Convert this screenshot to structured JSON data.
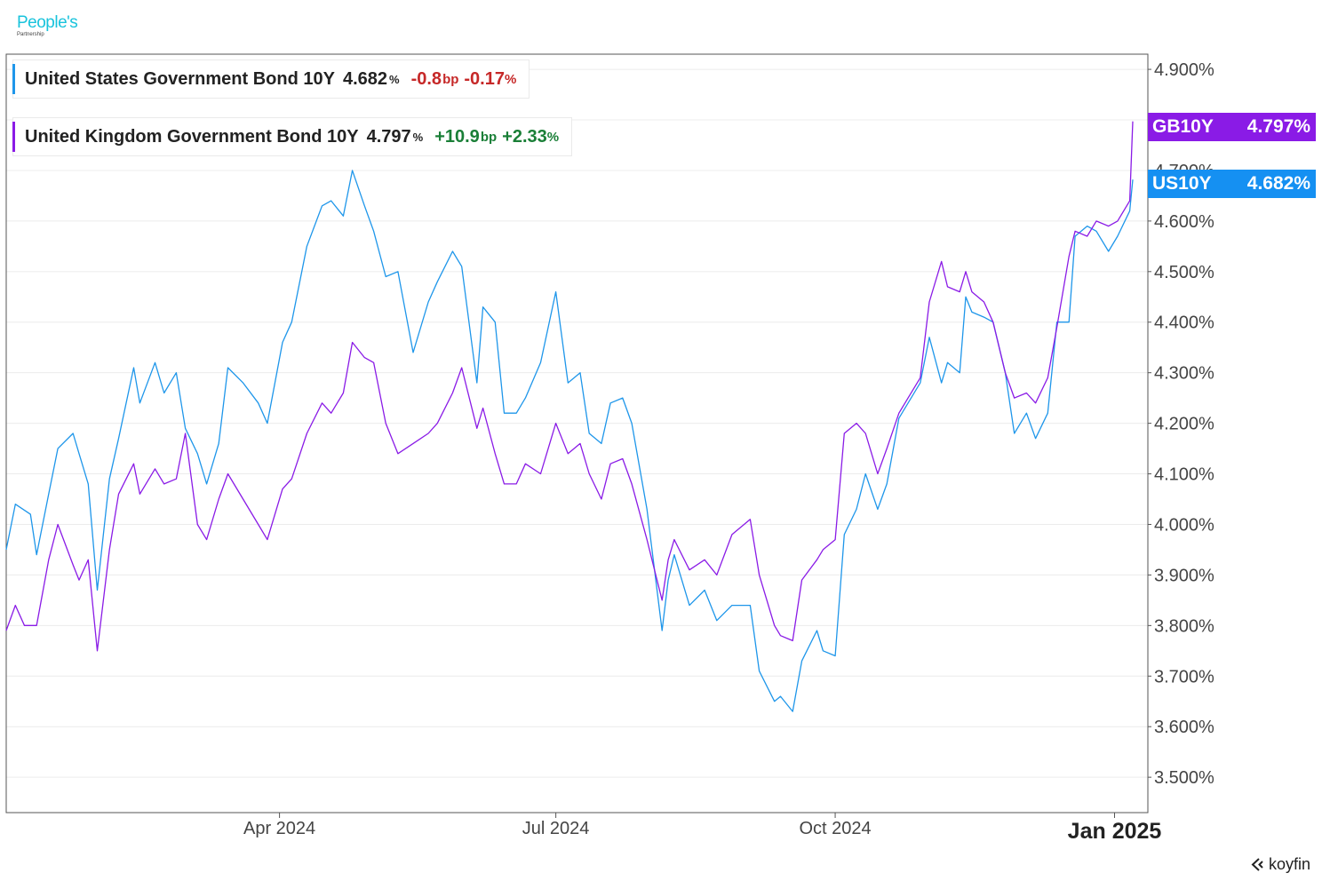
{
  "brand": {
    "name": "People's",
    "sub": "Partnership"
  },
  "legend": [
    {
      "name": "United States Government Bond 10Y",
      "value": "4.682",
      "value_unit": "%",
      "change_bp": "-0.8",
      "bp_unit": "bp",
      "change_pct": "-0.17",
      "pct_unit": "%",
      "direction": "neg",
      "color": "#1e96ea"
    },
    {
      "name": "United Kingdom Government Bond 10Y",
      "value": "4.797",
      "value_unit": "%",
      "change_bp": "+10.9",
      "bp_unit": "bp",
      "change_pct": "+2.33",
      "pct_unit": "%",
      "direction": "pos",
      "color": "#8a1be6"
    }
  ],
  "tags": [
    {
      "ticker": "GB10Y",
      "value": "4.797%",
      "color": "#8a1be6"
    },
    {
      "ticker": "US10Y",
      "value": "4.682%",
      "color": "#1590f2"
    }
  ],
  "footer": {
    "source": "koyfin"
  },
  "chart_data": {
    "type": "line",
    "title": "",
    "xlabel": "",
    "ylabel": "",
    "x_range": [
      "2024-01-02",
      "2025-01-07"
    ],
    "ylim": [
      3.43,
      4.93
    ],
    "y_ticks": [
      3.5,
      3.6,
      3.7,
      3.8,
      3.9,
      4.0,
      4.1,
      4.2,
      4.3,
      4.4,
      4.5,
      4.6,
      4.7,
      4.8,
      4.9
    ],
    "y_tick_labels": [
      "3.500%",
      "3.600%",
      "3.700%",
      "3.800%",
      "3.900%",
      "4.000%",
      "4.100%",
      "4.200%",
      "4.300%",
      "4.400%",
      "4.500%",
      "4.600%",
      "4.700%",
      "4.800%",
      "4.900%"
    ],
    "x_ticks": [
      {
        "date": "2024-04-01",
        "label": "Apr 2024"
      },
      {
        "date": "2024-07-01",
        "label": "Jul 2024"
      },
      {
        "date": "2024-10-01",
        "label": "Oct 2024"
      },
      {
        "date": "2025-01-01",
        "label": "Jan 2025",
        "major": true
      }
    ],
    "grid": true,
    "series": [
      {
        "name": "United States Government Bond 10Y",
        "ticker": "US10Y",
        "color": "#1e96ea",
        "points": [
          [
            "2024-01-02",
            3.95
          ],
          [
            "2024-01-05",
            4.04
          ],
          [
            "2024-01-10",
            4.02
          ],
          [
            "2024-01-12",
            3.94
          ],
          [
            "2024-01-16",
            4.06
          ],
          [
            "2024-01-19",
            4.15
          ],
          [
            "2024-01-24",
            4.18
          ],
          [
            "2024-01-26",
            4.14
          ],
          [
            "2024-01-29",
            4.08
          ],
          [
            "2024-02-01",
            3.87
          ],
          [
            "2024-02-05",
            4.09
          ],
          [
            "2024-02-08",
            4.17
          ],
          [
            "2024-02-13",
            4.31
          ],
          [
            "2024-02-15",
            4.24
          ],
          [
            "2024-02-20",
            4.32
          ],
          [
            "2024-02-23",
            4.26
          ],
          [
            "2024-02-27",
            4.3
          ],
          [
            "2024-03-01",
            4.19
          ],
          [
            "2024-03-05",
            4.14
          ],
          [
            "2024-03-08",
            4.08
          ],
          [
            "2024-03-12",
            4.16
          ],
          [
            "2024-03-15",
            4.31
          ],
          [
            "2024-03-20",
            4.28
          ],
          [
            "2024-03-25",
            4.24
          ],
          [
            "2024-03-28",
            4.2
          ],
          [
            "2024-04-02",
            4.36
          ],
          [
            "2024-04-05",
            4.4
          ],
          [
            "2024-04-10",
            4.55
          ],
          [
            "2024-04-15",
            4.63
          ],
          [
            "2024-04-18",
            4.64
          ],
          [
            "2024-04-22",
            4.61
          ],
          [
            "2024-04-25",
            4.7
          ],
          [
            "2024-04-29",
            4.63
          ],
          [
            "2024-05-02",
            4.58
          ],
          [
            "2024-05-06",
            4.49
          ],
          [
            "2024-05-10",
            4.5
          ],
          [
            "2024-05-15",
            4.34
          ],
          [
            "2024-05-20",
            4.44
          ],
          [
            "2024-05-23",
            4.48
          ],
          [
            "2024-05-28",
            4.54
          ],
          [
            "2024-05-31",
            4.51
          ],
          [
            "2024-06-05",
            4.28
          ],
          [
            "2024-06-07",
            4.43
          ],
          [
            "2024-06-11",
            4.4
          ],
          [
            "2024-06-14",
            4.22
          ],
          [
            "2024-06-18",
            4.22
          ],
          [
            "2024-06-21",
            4.25
          ],
          [
            "2024-06-26",
            4.32
          ],
          [
            "2024-07-01",
            4.46
          ],
          [
            "2024-07-05",
            4.28
          ],
          [
            "2024-07-09",
            4.3
          ],
          [
            "2024-07-12",
            4.18
          ],
          [
            "2024-07-16",
            4.16
          ],
          [
            "2024-07-19",
            4.24
          ],
          [
            "2024-07-23",
            4.25
          ],
          [
            "2024-07-26",
            4.2
          ],
          [
            "2024-07-31",
            4.03
          ],
          [
            "2024-08-05",
            3.79
          ],
          [
            "2024-08-07",
            3.89
          ],
          [
            "2024-08-09",
            3.94
          ],
          [
            "2024-08-14",
            3.84
          ],
          [
            "2024-08-19",
            3.87
          ],
          [
            "2024-08-23",
            3.81
          ],
          [
            "2024-08-28",
            3.84
          ],
          [
            "2024-09-03",
            3.84
          ],
          [
            "2024-09-06",
            3.71
          ],
          [
            "2024-09-11",
            3.65
          ],
          [
            "2024-09-13",
            3.66
          ],
          [
            "2024-09-17",
            3.63
          ],
          [
            "2024-09-20",
            3.73
          ],
          [
            "2024-09-25",
            3.79
          ],
          [
            "2024-09-27",
            3.75
          ],
          [
            "2024-10-01",
            3.74
          ],
          [
            "2024-10-04",
            3.98
          ],
          [
            "2024-10-08",
            4.03
          ],
          [
            "2024-10-11",
            4.1
          ],
          [
            "2024-10-15",
            4.03
          ],
          [
            "2024-10-18",
            4.08
          ],
          [
            "2024-10-22",
            4.21
          ],
          [
            "2024-10-25",
            4.24
          ],
          [
            "2024-10-29",
            4.28
          ],
          [
            "2024-11-01",
            4.37
          ],
          [
            "2024-11-05",
            4.28
          ],
          [
            "2024-11-07",
            4.32
          ],
          [
            "2024-11-11",
            4.3
          ],
          [
            "2024-11-13",
            4.45
          ],
          [
            "2024-11-15",
            4.42
          ],
          [
            "2024-11-19",
            4.41
          ],
          [
            "2024-11-22",
            4.4
          ],
          [
            "2024-11-26",
            4.3
          ],
          [
            "2024-11-29",
            4.18
          ],
          [
            "2024-12-03",
            4.22
          ],
          [
            "2024-12-06",
            4.17
          ],
          [
            "2024-12-10",
            4.22
          ],
          [
            "2024-12-13",
            4.4
          ],
          [
            "2024-12-17",
            4.4
          ],
          [
            "2024-12-19",
            4.57
          ],
          [
            "2024-12-23",
            4.59
          ],
          [
            "2024-12-26",
            4.58
          ],
          [
            "2024-12-30",
            4.54
          ],
          [
            "2025-01-02",
            4.57
          ],
          [
            "2025-01-06",
            4.62
          ],
          [
            "2025-01-07",
            4.682
          ]
        ]
      },
      {
        "name": "United Kingdom Government Bond 10Y",
        "ticker": "GB10Y",
        "color": "#8a1be6",
        "points": [
          [
            "2024-01-02",
            3.79
          ],
          [
            "2024-01-05",
            3.84
          ],
          [
            "2024-01-08",
            3.8
          ],
          [
            "2024-01-12",
            3.8
          ],
          [
            "2024-01-16",
            3.93
          ],
          [
            "2024-01-19",
            4.0
          ],
          [
            "2024-01-24",
            3.92
          ],
          [
            "2024-01-26",
            3.89
          ],
          [
            "2024-01-29",
            3.93
          ],
          [
            "2024-02-01",
            3.75
          ],
          [
            "2024-02-05",
            3.95
          ],
          [
            "2024-02-08",
            4.06
          ],
          [
            "2024-02-13",
            4.12
          ],
          [
            "2024-02-15",
            4.06
          ],
          [
            "2024-02-20",
            4.11
          ],
          [
            "2024-02-23",
            4.08
          ],
          [
            "2024-02-27",
            4.09
          ],
          [
            "2024-03-01",
            4.18
          ],
          [
            "2024-03-05",
            4.0
          ],
          [
            "2024-03-08",
            3.97
          ],
          [
            "2024-03-12",
            4.05
          ],
          [
            "2024-03-15",
            4.1
          ],
          [
            "2024-03-20",
            4.05
          ],
          [
            "2024-03-25",
            4.0
          ],
          [
            "2024-03-28",
            3.97
          ],
          [
            "2024-04-02",
            4.07
          ],
          [
            "2024-04-05",
            4.09
          ],
          [
            "2024-04-10",
            4.18
          ],
          [
            "2024-04-15",
            4.24
          ],
          [
            "2024-04-18",
            4.22
          ],
          [
            "2024-04-22",
            4.26
          ],
          [
            "2024-04-25",
            4.36
          ],
          [
            "2024-04-29",
            4.33
          ],
          [
            "2024-05-02",
            4.32
          ],
          [
            "2024-05-06",
            4.2
          ],
          [
            "2024-05-10",
            4.14
          ],
          [
            "2024-05-15",
            4.16
          ],
          [
            "2024-05-20",
            4.18
          ],
          [
            "2024-05-23",
            4.2
          ],
          [
            "2024-05-28",
            4.26
          ],
          [
            "2024-05-31",
            4.31
          ],
          [
            "2024-06-05",
            4.19
          ],
          [
            "2024-06-07",
            4.23
          ],
          [
            "2024-06-11",
            4.14
          ],
          [
            "2024-06-14",
            4.08
          ],
          [
            "2024-06-18",
            4.08
          ],
          [
            "2024-06-21",
            4.12
          ],
          [
            "2024-06-26",
            4.1
          ],
          [
            "2024-07-01",
            4.2
          ],
          [
            "2024-07-05",
            4.14
          ],
          [
            "2024-07-09",
            4.16
          ],
          [
            "2024-07-12",
            4.1
          ],
          [
            "2024-07-16",
            4.05
          ],
          [
            "2024-07-19",
            4.12
          ],
          [
            "2024-07-23",
            4.13
          ],
          [
            "2024-07-26",
            4.08
          ],
          [
            "2024-07-31",
            3.97
          ],
          [
            "2024-08-05",
            3.85
          ],
          [
            "2024-08-07",
            3.93
          ],
          [
            "2024-08-09",
            3.97
          ],
          [
            "2024-08-14",
            3.91
          ],
          [
            "2024-08-19",
            3.93
          ],
          [
            "2024-08-23",
            3.9
          ],
          [
            "2024-08-28",
            3.98
          ],
          [
            "2024-09-03",
            4.01
          ],
          [
            "2024-09-06",
            3.9
          ],
          [
            "2024-09-11",
            3.8
          ],
          [
            "2024-09-13",
            3.78
          ],
          [
            "2024-09-17",
            3.77
          ],
          [
            "2024-09-20",
            3.89
          ],
          [
            "2024-09-25",
            3.93
          ],
          [
            "2024-09-27",
            3.95
          ],
          [
            "2024-10-01",
            3.97
          ],
          [
            "2024-10-04",
            4.18
          ],
          [
            "2024-10-08",
            4.2
          ],
          [
            "2024-10-11",
            4.18
          ],
          [
            "2024-10-15",
            4.1
          ],
          [
            "2024-10-18",
            4.15
          ],
          [
            "2024-10-22",
            4.22
          ],
          [
            "2024-10-25",
            4.25
          ],
          [
            "2024-10-29",
            4.29
          ],
          [
            "2024-11-01",
            4.44
          ],
          [
            "2024-11-05",
            4.52
          ],
          [
            "2024-11-07",
            4.47
          ],
          [
            "2024-11-11",
            4.46
          ],
          [
            "2024-11-13",
            4.5
          ],
          [
            "2024-11-15",
            4.46
          ],
          [
            "2024-11-19",
            4.44
          ],
          [
            "2024-11-22",
            4.4
          ],
          [
            "2024-11-26",
            4.3
          ],
          [
            "2024-11-29",
            4.25
          ],
          [
            "2024-12-03",
            4.26
          ],
          [
            "2024-12-06",
            4.24
          ],
          [
            "2024-12-10",
            4.29
          ],
          [
            "2024-12-13",
            4.39
          ],
          [
            "2024-12-17",
            4.53
          ],
          [
            "2024-12-19",
            4.58
          ],
          [
            "2024-12-23",
            4.57
          ],
          [
            "2024-12-26",
            4.6
          ],
          [
            "2024-12-30",
            4.59
          ],
          [
            "2025-01-02",
            4.6
          ],
          [
            "2025-01-06",
            4.64
          ],
          [
            "2025-01-07",
            4.797
          ]
        ]
      }
    ]
  }
}
